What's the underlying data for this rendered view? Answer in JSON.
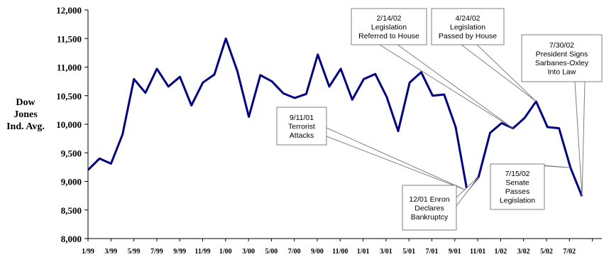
{
  "chart_data": {
    "type": "line",
    "ylabel_lines": [
      "Dow",
      "Jones",
      "Ind. Avg."
    ],
    "ylim": [
      8000,
      12000
    ],
    "yticks": [
      8000,
      8500,
      9000,
      9500,
      10000,
      10500,
      11000,
      11500,
      12000
    ],
    "ytick_labels": [
      "8,000",
      "8,500",
      "9,000",
      "9,500",
      "10,000",
      "10,500",
      "11,000",
      "11,500",
      "12,000"
    ],
    "xtick_labels": [
      "1/99",
      "3/99",
      "5/99",
      "7/99",
      "9/99",
      "11/99",
      "1/00",
      "3/00",
      "5/00",
      "7/00",
      "9/00",
      "11/00",
      "1/01",
      "3/01",
      "5/01",
      "7/01",
      "9/01",
      "11/01",
      "1/02",
      "3/02",
      "5/02",
      "7/02"
    ],
    "grid": false,
    "legend": "none",
    "line_color": "#000080",
    "series": [
      {
        "values": [
          9200,
          9400,
          9310,
          9820,
          10790,
          10550,
          10970,
          10660,
          10830,
          10330,
          10730,
          10870,
          11500,
          10930,
          10130,
          10860,
          10750,
          10540,
          10460,
          10530,
          11220,
          10660,
          10970,
          10430,
          10790,
          10880,
          10480,
          9880,
          10730,
          10910,
          10500,
          10520,
          9950,
          8840,
          9080,
          9850,
          10020,
          9930,
          10110,
          10400,
          9950,
          9930,
          9240,
          8740
        ]
      }
    ],
    "annotations": [
      {
        "lines": [
          "2/14/02",
          "Legislation",
          "Referred to House"
        ],
        "point": 37
      },
      {
        "lines": [
          "4/24/02",
          "Legislation",
          "Passed by House"
        ],
        "point": 39
      },
      {
        "lines": [
          "7/30/02",
          "President Signs",
          "Sarbanes-Oxley",
          "Into Law"
        ],
        "point": 43
      },
      {
        "lines": [
          "9/11/01",
          "Terrorist",
          "Attacks"
        ],
        "point": 33
      },
      {
        "lines": [
          "12/01 Enron",
          "Declares",
          "Bankruptcy"
        ],
        "point": 34
      },
      {
        "lines": [
          "7/15/02",
          "Senate",
          "Passes",
          "Legislation"
        ],
        "point": 42
      }
    ]
  }
}
